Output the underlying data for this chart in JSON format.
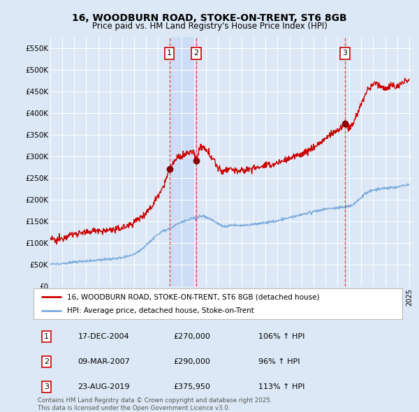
{
  "title": "16, WOODBURN ROAD, STOKE-ON-TRENT, ST6 8GB",
  "subtitle": "Price paid vs. HM Land Registry's House Price Index (HPI)",
  "ylabel_ticks": [
    "£0",
    "£50K",
    "£100K",
    "£150K",
    "£200K",
    "£250K",
    "£300K",
    "£350K",
    "£400K",
    "£450K",
    "£500K",
    "£550K"
  ],
  "ytick_vals": [
    0,
    50000,
    100000,
    150000,
    200000,
    250000,
    300000,
    350000,
    400000,
    450000,
    500000,
    550000
  ],
  "ylim": [
    0,
    575000
  ],
  "fig_bg_color": "#dce8f5",
  "plot_bg_color": "#dce8f5",
  "grid_color": "#ffffff",
  "red_line_color": "#cc0000",
  "blue_line_color": "#7aaadd",
  "sale_marker_color": "#880000",
  "sale_marker_size": 7,
  "sale_dates": [
    2004.96,
    2007.18,
    2019.64
  ],
  "sale_prices": [
    270000,
    290000,
    375950
  ],
  "sale_labels": [
    "1",
    "2",
    "3"
  ],
  "vline_color": "#dd4444",
  "shade_color": "#ccddf5",
  "legend_label_red": "16, WOODBURN ROAD, STOKE-ON-TRENT, ST6 8GB (detached house)",
  "legend_label_blue": "HPI: Average price, detached house, Stoke-on-Trent",
  "table_rows": [
    [
      "1",
      "17-DEC-2004",
      "£270,000",
      "106% ↑ HPI"
    ],
    [
      "2",
      "09-MAR-2007",
      "£290,000",
      "96% ↑ HPI"
    ],
    [
      "3",
      "23-AUG-2019",
      "£375,950",
      "113% ↑ HPI"
    ]
  ],
  "footnote": "Contains HM Land Registry data © Crown copyright and database right 2025.\nThis data is licensed under the Open Government Licence v3.0.",
  "figsize": [
    6.0,
    5.9
  ],
  "dpi": 100
}
